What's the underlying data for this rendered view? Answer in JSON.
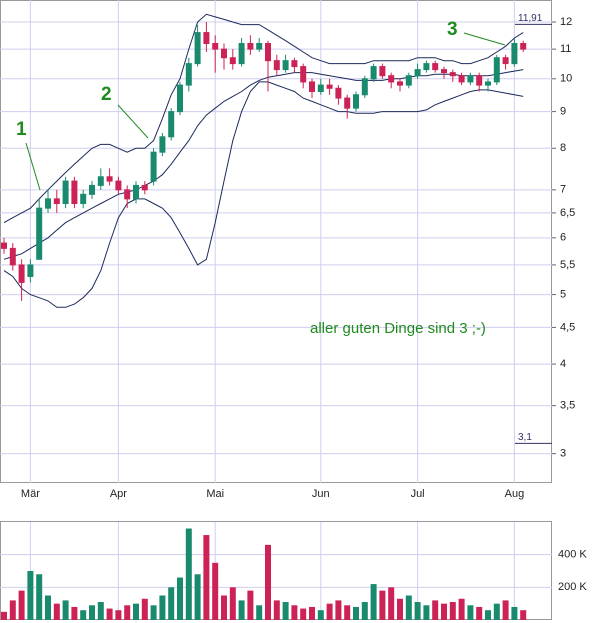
{
  "chart_data": [
    {
      "type": "candlestick",
      "categories": [
        null,
        null,
        null,
        "Mär",
        null,
        null,
        null,
        null,
        null,
        null,
        null,
        null,
        null,
        "Apr",
        null,
        null,
        null,
        null,
        null,
        null,
        null,
        null,
        null,
        null,
        "Mai",
        null,
        null,
        null,
        null,
        null,
        null,
        null,
        null,
        null,
        null,
        null,
        "Jun",
        null,
        null,
        null,
        null,
        null,
        null,
        null,
        null,
        null,
        null,
        "Jul",
        null,
        null,
        null,
        null,
        null,
        null,
        null,
        null,
        null,
        null,
        "Aug",
        null
      ],
      "open": [
        5.9,
        5.8,
        5.5,
        5.3,
        5.6,
        6.6,
        6.8,
        6.7,
        7.2,
        6.7,
        6.9,
        7.1,
        7.3,
        7.2,
        7.0,
        6.8,
        7.1,
        7.2,
        7.9,
        8.3,
        9.0,
        9.8,
        10.5,
        11.6,
        11.2,
        11.0,
        10.7,
        10.5,
        11.2,
        11.0,
        11.2,
        10.6,
        10.3,
        10.6,
        10.4,
        9.9,
        9.6,
        9.8,
        9.7,
        9.4,
        9.1,
        9.5,
        10.0,
        10.4,
        10.1,
        9.9,
        9.8,
        10.1,
        10.3,
        10.5,
        10.3,
        10.2,
        10.1,
        9.9,
        10.1,
        9.8,
        9.9,
        10.7,
        10.5,
        11.2
      ],
      "high": [
        6.0,
        5.9,
        5.6,
        5.6,
        6.8,
        7.0,
        7.0,
        7.3,
        7.3,
        7.0,
        7.2,
        7.5,
        7.5,
        7.3,
        7.1,
        7.2,
        7.2,
        8.0,
        8.4,
        9.1,
        9.9,
        10.7,
        11.9,
        12.0,
        11.5,
        11.2,
        11.0,
        11.4,
        11.5,
        11.4,
        11.3,
        10.8,
        10.8,
        10.7,
        10.5,
        10.0,
        10.0,
        10.0,
        9.8,
        9.5,
        9.6,
        10.1,
        10.5,
        10.5,
        10.2,
        10.0,
        10.2,
        10.5,
        10.6,
        10.6,
        10.4,
        10.3,
        10.2,
        10.2,
        10.2,
        10.0,
        10.8,
        10.8,
        11.4,
        11.3
      ],
      "low": [
        5.7,
        5.4,
        4.9,
        5.2,
        5.6,
        6.5,
        6.5,
        6.6,
        6.6,
        6.6,
        6.8,
        7.0,
        7.1,
        6.9,
        6.6,
        6.7,
        6.9,
        7.1,
        7.8,
        8.2,
        8.9,
        9.6,
        10.4,
        10.9,
        10.2,
        10.3,
        10.3,
        10.4,
        10.8,
        10.9,
        9.6,
        10.1,
        10.2,
        10.2,
        9.7,
        9.4,
        9.5,
        9.5,
        9.2,
        8.8,
        9.0,
        9.4,
        9.9,
        10.0,
        9.7,
        9.6,
        9.7,
        10.0,
        10.2,
        10.2,
        10.0,
        9.9,
        9.8,
        9.8,
        9.6,
        9.6,
        9.8,
        10.3,
        10.4,
        10.9
      ],
      "close": [
        5.8,
        5.5,
        5.2,
        5.5,
        6.6,
        6.8,
        6.7,
        7.2,
        6.7,
        6.9,
        7.1,
        7.3,
        7.2,
        7.0,
        6.8,
        7.1,
        7.0,
        7.9,
        8.3,
        9.0,
        9.8,
        10.5,
        11.6,
        11.2,
        11.0,
        10.7,
        10.5,
        11.2,
        11.0,
        11.2,
        10.6,
        10.3,
        10.6,
        10.4,
        9.9,
        9.6,
        9.8,
        9.7,
        9.4,
        9.1,
        9.5,
        10.0,
        10.4,
        10.1,
        9.9,
        9.8,
        10.1,
        10.3,
        10.5,
        10.3,
        10.2,
        10.1,
        9.9,
        10.1,
        9.8,
        9.9,
        10.7,
        10.5,
        11.2,
        11.0
      ],
      "up_color": "#1a8a6e",
      "down_color": "#cc2255",
      "lines": [
        {
          "color": "#1c2a5c",
          "values": [
            6.3,
            6.4,
            6.5,
            6.6,
            6.8,
            7.0,
            7.2,
            7.4,
            7.6,
            7.8,
            8.0,
            8.1,
            8.1,
            8.0,
            7.9,
            8.0,
            8.0,
            8.2,
            8.8,
            9.5,
            10.0,
            11.0,
            12.0,
            12.3,
            12.2,
            12.1,
            12.0,
            11.9,
            11.9,
            11.9,
            11.7,
            11.5,
            11.3,
            11.1,
            10.9,
            10.7,
            10.6,
            10.5,
            10.5,
            10.5,
            10.5,
            10.5,
            10.6,
            10.6,
            10.6,
            10.6,
            10.6,
            10.7,
            10.7,
            10.7,
            10.6,
            10.6,
            10.5,
            10.5,
            10.6,
            10.7,
            10.9,
            11.1,
            11.4,
            11.6
          ]
        },
        {
          "color": "#1c2a5c",
          "values": [
            5.6,
            5.65,
            5.7,
            5.8,
            5.9,
            6.0,
            6.15,
            6.3,
            6.4,
            6.5,
            6.6,
            6.7,
            6.8,
            6.9,
            6.95,
            7.0,
            7.1,
            7.2,
            7.35,
            7.6,
            7.9,
            8.2,
            8.6,
            8.9,
            9.1,
            9.3,
            9.45,
            9.6,
            9.8,
            9.95,
            10.05,
            10.1,
            10.15,
            10.2,
            10.2,
            10.2,
            10.15,
            10.1,
            10.05,
            10.0,
            9.95,
            9.95,
            9.95,
            9.95,
            10.0,
            10.0,
            10.05,
            10.1,
            10.1,
            10.15,
            10.15,
            10.15,
            10.1,
            10.1,
            10.1,
            10.1,
            10.15,
            10.2,
            10.25,
            10.3
          ]
        },
        {
          "color": "#1c2a5c",
          "values": [
            5.4,
            5.3,
            5.1,
            5.0,
            4.95,
            4.9,
            4.8,
            4.8,
            4.85,
            4.95,
            5.1,
            5.4,
            5.9,
            6.4,
            6.7,
            6.8,
            6.8,
            6.7,
            6.6,
            6.4,
            6.1,
            5.8,
            5.5,
            5.6,
            6.3,
            7.2,
            8.2,
            9.0,
            9.6,
            9.9,
            9.9,
            9.8,
            9.7,
            9.6,
            9.4,
            9.3,
            9.2,
            9.1,
            9.0,
            9.0,
            8.95,
            8.95,
            8.95,
            9.0,
            9.0,
            9.0,
            9.0,
            9.0,
            9.05,
            9.2,
            9.3,
            9.4,
            9.5,
            9.6,
            9.65,
            9.65,
            9.6,
            9.55,
            9.5,
            9.45
          ]
        }
      ],
      "log_scale": true,
      "grid": true,
      "ylim": [
        2.73,
        12.88
      ],
      "yticks": [
        3,
        {
          "value": 3.5,
          "label": "3,5"
        },
        4,
        {
          "value": 4.5,
          "label": "4,5"
        },
        5,
        {
          "value": 5.5,
          "label": "5,5"
        },
        6,
        {
          "value": 6.5,
          "label": "6,5"
        },
        7,
        8,
        9,
        10,
        11,
        12
      ],
      "markers": [
        {
          "value": 11.91,
          "label": "11,91"
        },
        {
          "value": 3.1,
          "label": "3,1"
        }
      ],
      "annotations": [
        "1",
        "2",
        "3",
        "aller guten Dinge sind 3 ;-)"
      ]
    },
    {
      "type": "bar",
      "values": [
        50000,
        120000,
        180000,
        300000,
        280000,
        150000,
        100000,
        120000,
        80000,
        60000,
        90000,
        110000,
        70000,
        60000,
        90000,
        100000,
        130000,
        90000,
        150000,
        200000,
        260000,
        560000,
        280000,
        520000,
        350000,
        150000,
        200000,
        120000,
        180000,
        90000,
        460000,
        120000,
        110000,
        90000,
        70000,
        80000,
        60000,
        100000,
        120000,
        90000,
        80000,
        110000,
        220000,
        180000,
        200000,
        130000,
        150000,
        110000,
        90000,
        120000,
        100000,
        110000,
        130000,
        90000,
        80000,
        60000,
        100000,
        120000,
        80000,
        60000
      ],
      "ylim": [
        0,
        600000
      ],
      "yticks": [
        {
          "value": 200000,
          "label": "200 K"
        },
        {
          "value": 400000,
          "label": "400 K"
        }
      ],
      "grid": true
    }
  ]
}
